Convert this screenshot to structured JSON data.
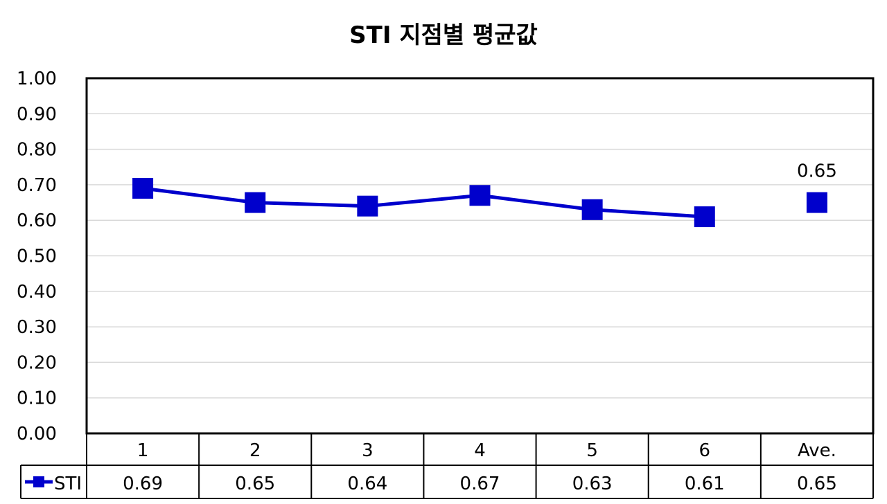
{
  "chart_data": {
    "type": "line",
    "title": "STI 지점별 평균값",
    "categories": [
      "1",
      "2",
      "3",
      "4",
      "5",
      "6",
      "Ave."
    ],
    "y_ticks": [
      "0.00",
      "0.10",
      "0.20",
      "0.30",
      "0.40",
      "0.50",
      "0.60",
      "0.70",
      "0.80",
      "0.90",
      "1.00"
    ],
    "ylim": [
      0,
      1
    ],
    "grid": true,
    "data_table": true,
    "series": [
      {
        "name": "STI",
        "color": "#0000cc",
        "marker": "square",
        "values": [
          0.69,
          0.65,
          0.64,
          0.67,
          0.63,
          0.61,
          0.65
        ],
        "value_labels": [
          "0.69",
          "0.65",
          "0.64",
          "0.67",
          "0.63",
          "0.61",
          "0.65"
        ],
        "connected_points": 6
      }
    ],
    "annotations": [
      {
        "category": "Ave.",
        "text": "0.65"
      }
    ]
  }
}
